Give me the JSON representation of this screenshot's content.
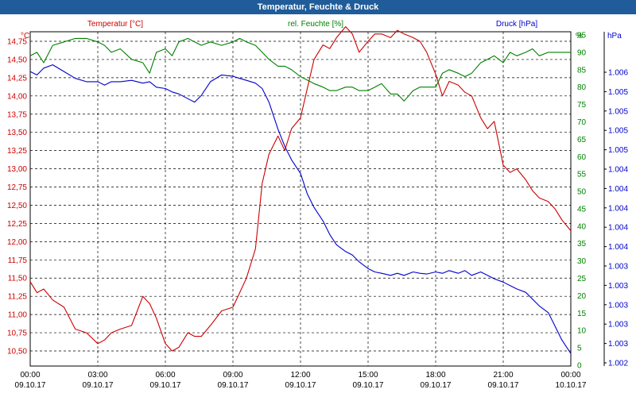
{
  "chart_data": {
    "type": "line",
    "title": "Temperatur, Feuchte & Druck",
    "legend": [
      {
        "label": "Temperatur [°C]",
        "color": "#cc0000"
      },
      {
        "label": "rel. Feuchte [%]",
        "color": "#008000"
      },
      {
        "label": "Druck [hPa]",
        "color": "#0000cc"
      }
    ],
    "axes": {
      "temperature": {
        "unit": "°C",
        "color": "#cc0000",
        "ylim": [
          10.35,
          15.15
        ],
        "ticks": [
          "14,75",
          "14,50",
          "14,25",
          "14,00",
          "13,75",
          "13,50",
          "13,25",
          "13,00",
          "12,75",
          "12,50",
          "12,25",
          "12,00",
          "11,75",
          "11,50",
          "11,25",
          "11,00",
          "10,75",
          "10,50"
        ]
      },
      "humidity": {
        "unit": "%",
        "color": "#008000",
        "ylim": [
          0,
          95
        ],
        "ticks": [
          "95",
          "90",
          "85",
          "80",
          "75",
          "70",
          "65",
          "60",
          "55",
          "50",
          "45",
          "40",
          "35",
          "30",
          "25",
          "20",
          "15",
          "10",
          "5",
          "0"
        ]
      },
      "pressure": {
        "unit": "hPa",
        "color": "#0000cc",
        "ticks": [
          "1.006",
          "1.005",
          "1.005",
          "1.005",
          "1.005",
          "1.004",
          "1.004",
          "1.004",
          "1.004",
          "1.004",
          "1.003",
          "1.003",
          "1.003",
          "1.003",
          "1.003",
          "1.002"
        ]
      }
    },
    "x_ticks": [
      {
        "time": "00:00",
        "date": "09.10.17"
      },
      {
        "time": "03:00",
        "date": "09.10.17"
      },
      {
        "time": "06:00",
        "date": "09.10.17"
      },
      {
        "time": "09:00",
        "date": "09.10.17"
      },
      {
        "time": "12:00",
        "date": "09.10.17"
      },
      {
        "time": "15:00",
        "date": "09.10.17"
      },
      {
        "time": "18:00",
        "date": "09.10.17"
      },
      {
        "time": "21:00",
        "date": "09.10.17"
      },
      {
        "time": "00:00",
        "date": "10.10.17"
      }
    ],
    "xlim_hours": [
      0,
      24
    ],
    "series": [
      {
        "name": "Temperatur [°C]",
        "color": "#cc0000",
        "axis": "temperature",
        "x": [
          0,
          0.3,
          0.6,
          1,
          1.5,
          2,
          2.5,
          3,
          3.3,
          3.6,
          4,
          4.5,
          5,
          5.3,
          5.6,
          6,
          6.3,
          6.6,
          7,
          7.3,
          7.6,
          8,
          8.5,
          9,
          9.3,
          9.6,
          10,
          10.3,
          10.6,
          11,
          11.3,
          11.6,
          12,
          12.3,
          12.6,
          13,
          13.3,
          13.6,
          14,
          14.3,
          14.6,
          15,
          15.3,
          15.6,
          16,
          16.3,
          16.6,
          17,
          17.3,
          17.6,
          18,
          18.3,
          18.6,
          19,
          19.3,
          19.6,
          20,
          20.3,
          20.6,
          21,
          21.3,
          21.6,
          22,
          22.3,
          22.6,
          23,
          23.3,
          23.6,
          24
        ],
        "y": [
          11.45,
          11.3,
          11.35,
          11.2,
          11.1,
          10.8,
          10.75,
          10.6,
          10.65,
          10.75,
          10.8,
          10.85,
          11.25,
          11.15,
          10.95,
          10.6,
          10.5,
          10.55,
          10.75,
          10.7,
          10.7,
          10.85,
          11.05,
          11.1,
          11.3,
          11.5,
          11.9,
          12.8,
          13.2,
          13.45,
          13.25,
          13.55,
          13.7,
          14.1,
          14.5,
          14.7,
          14.65,
          14.8,
          14.95,
          14.85,
          14.6,
          14.75,
          14.85,
          14.85,
          14.8,
          14.9,
          14.85,
          14.8,
          14.75,
          14.6,
          14.3,
          14.0,
          14.2,
          14.15,
          14.05,
          14.0,
          13.7,
          13.55,
          13.65,
          13.05,
          12.95,
          13.0,
          12.85,
          12.7,
          12.6,
          12.55,
          12.45,
          12.3,
          12.15
        ]
      },
      {
        "name": "rel. Feuchte [%]",
        "color": "#008000",
        "axis": "humidity",
        "x": [
          0,
          0.3,
          0.6,
          1,
          1.5,
          2,
          2.5,
          3,
          3.3,
          3.6,
          4,
          4.5,
          5,
          5.3,
          5.6,
          6,
          6.3,
          6.6,
          7,
          7.3,
          7.6,
          8,
          8.5,
          9,
          9.3,
          9.6,
          10,
          10.3,
          10.6,
          11,
          11.3,
          11.6,
          12,
          12.3,
          12.6,
          13,
          13.3,
          13.6,
          14,
          14.3,
          14.6,
          15,
          15.3,
          15.6,
          16,
          16.3,
          16.6,
          17,
          17.3,
          17.6,
          18,
          18.3,
          18.6,
          19,
          19.3,
          19.6,
          20,
          20.3,
          20.6,
          21,
          21.3,
          21.6,
          22,
          22.3,
          22.6,
          23,
          23.3,
          23.6,
          24
        ],
        "y": [
          89,
          90,
          87,
          92,
          93,
          94,
          94,
          93,
          92,
          90,
          91,
          88,
          87,
          84,
          90,
          91,
          89,
          93,
          94,
          93,
          92,
          93,
          92,
          93,
          94,
          93,
          92,
          90,
          88,
          86,
          86,
          85,
          83,
          82,
          81,
          80,
          79,
          79,
          80,
          80,
          79,
          79,
          80,
          81,
          78,
          78,
          76,
          79,
          80,
          80,
          80,
          84,
          85,
          84,
          83,
          84,
          87,
          88,
          89,
          87,
          90,
          89,
          90,
          91,
          89,
          90,
          90,
          90,
          90
        ]
      },
      {
        "name": "Druck [hPa]",
        "color": "#0000cc",
        "axis": "pressure",
        "x": [
          0,
          0.3,
          0.6,
          1,
          1.5,
          2,
          2.5,
          3,
          3.3,
          3.6,
          4,
          4.5,
          5,
          5.3,
          5.6,
          6,
          6.3,
          6.6,
          7,
          7.3,
          7.6,
          8,
          8.5,
          9,
          9.3,
          9.6,
          10,
          10.3,
          10.6,
          11,
          11.3,
          11.6,
          12,
          12.3,
          12.6,
          13,
          13.3,
          13.6,
          14,
          14.3,
          14.6,
          15,
          15.3,
          15.6,
          16,
          16.3,
          16.6,
          17,
          17.3,
          17.6,
          18,
          18.3,
          18.6,
          19,
          19.3,
          19.6,
          20,
          20.3,
          20.6,
          21,
          21.3,
          21.6,
          22,
          22.3,
          22.6,
          23,
          23.3,
          23.6,
          24
        ],
        "y": [
          1005.85,
          1005.8,
          1005.9,
          1005.95,
          1005.85,
          1005.75,
          1005.7,
          1005.7,
          1005.65,
          1005.7,
          1005.7,
          1005.72,
          1005.68,
          1005.7,
          1005.62,
          1005.6,
          1005.55,
          1005.52,
          1005.45,
          1005.4,
          1005.5,
          1005.7,
          1005.8,
          1005.78,
          1005.75,
          1005.72,
          1005.68,
          1005.6,
          1005.4,
          1005.0,
          1004.75,
          1004.55,
          1004.35,
          1004.05,
          1003.85,
          1003.65,
          1003.45,
          1003.3,
          1003.2,
          1003.15,
          1003.05,
          1002.95,
          1002.9,
          1002.88,
          1002.85,
          1002.88,
          1002.85,
          1002.9,
          1002.88,
          1002.87,
          1002.9,
          1002.88,
          1002.92,
          1002.88,
          1002.92,
          1002.85,
          1002.9,
          1002.85,
          1002.8,
          1002.75,
          1002.7,
          1002.65,
          1002.6,
          1002.5,
          1002.4,
          1002.3,
          1002.1,
          1001.9,
          1001.7
        ]
      }
    ]
  }
}
